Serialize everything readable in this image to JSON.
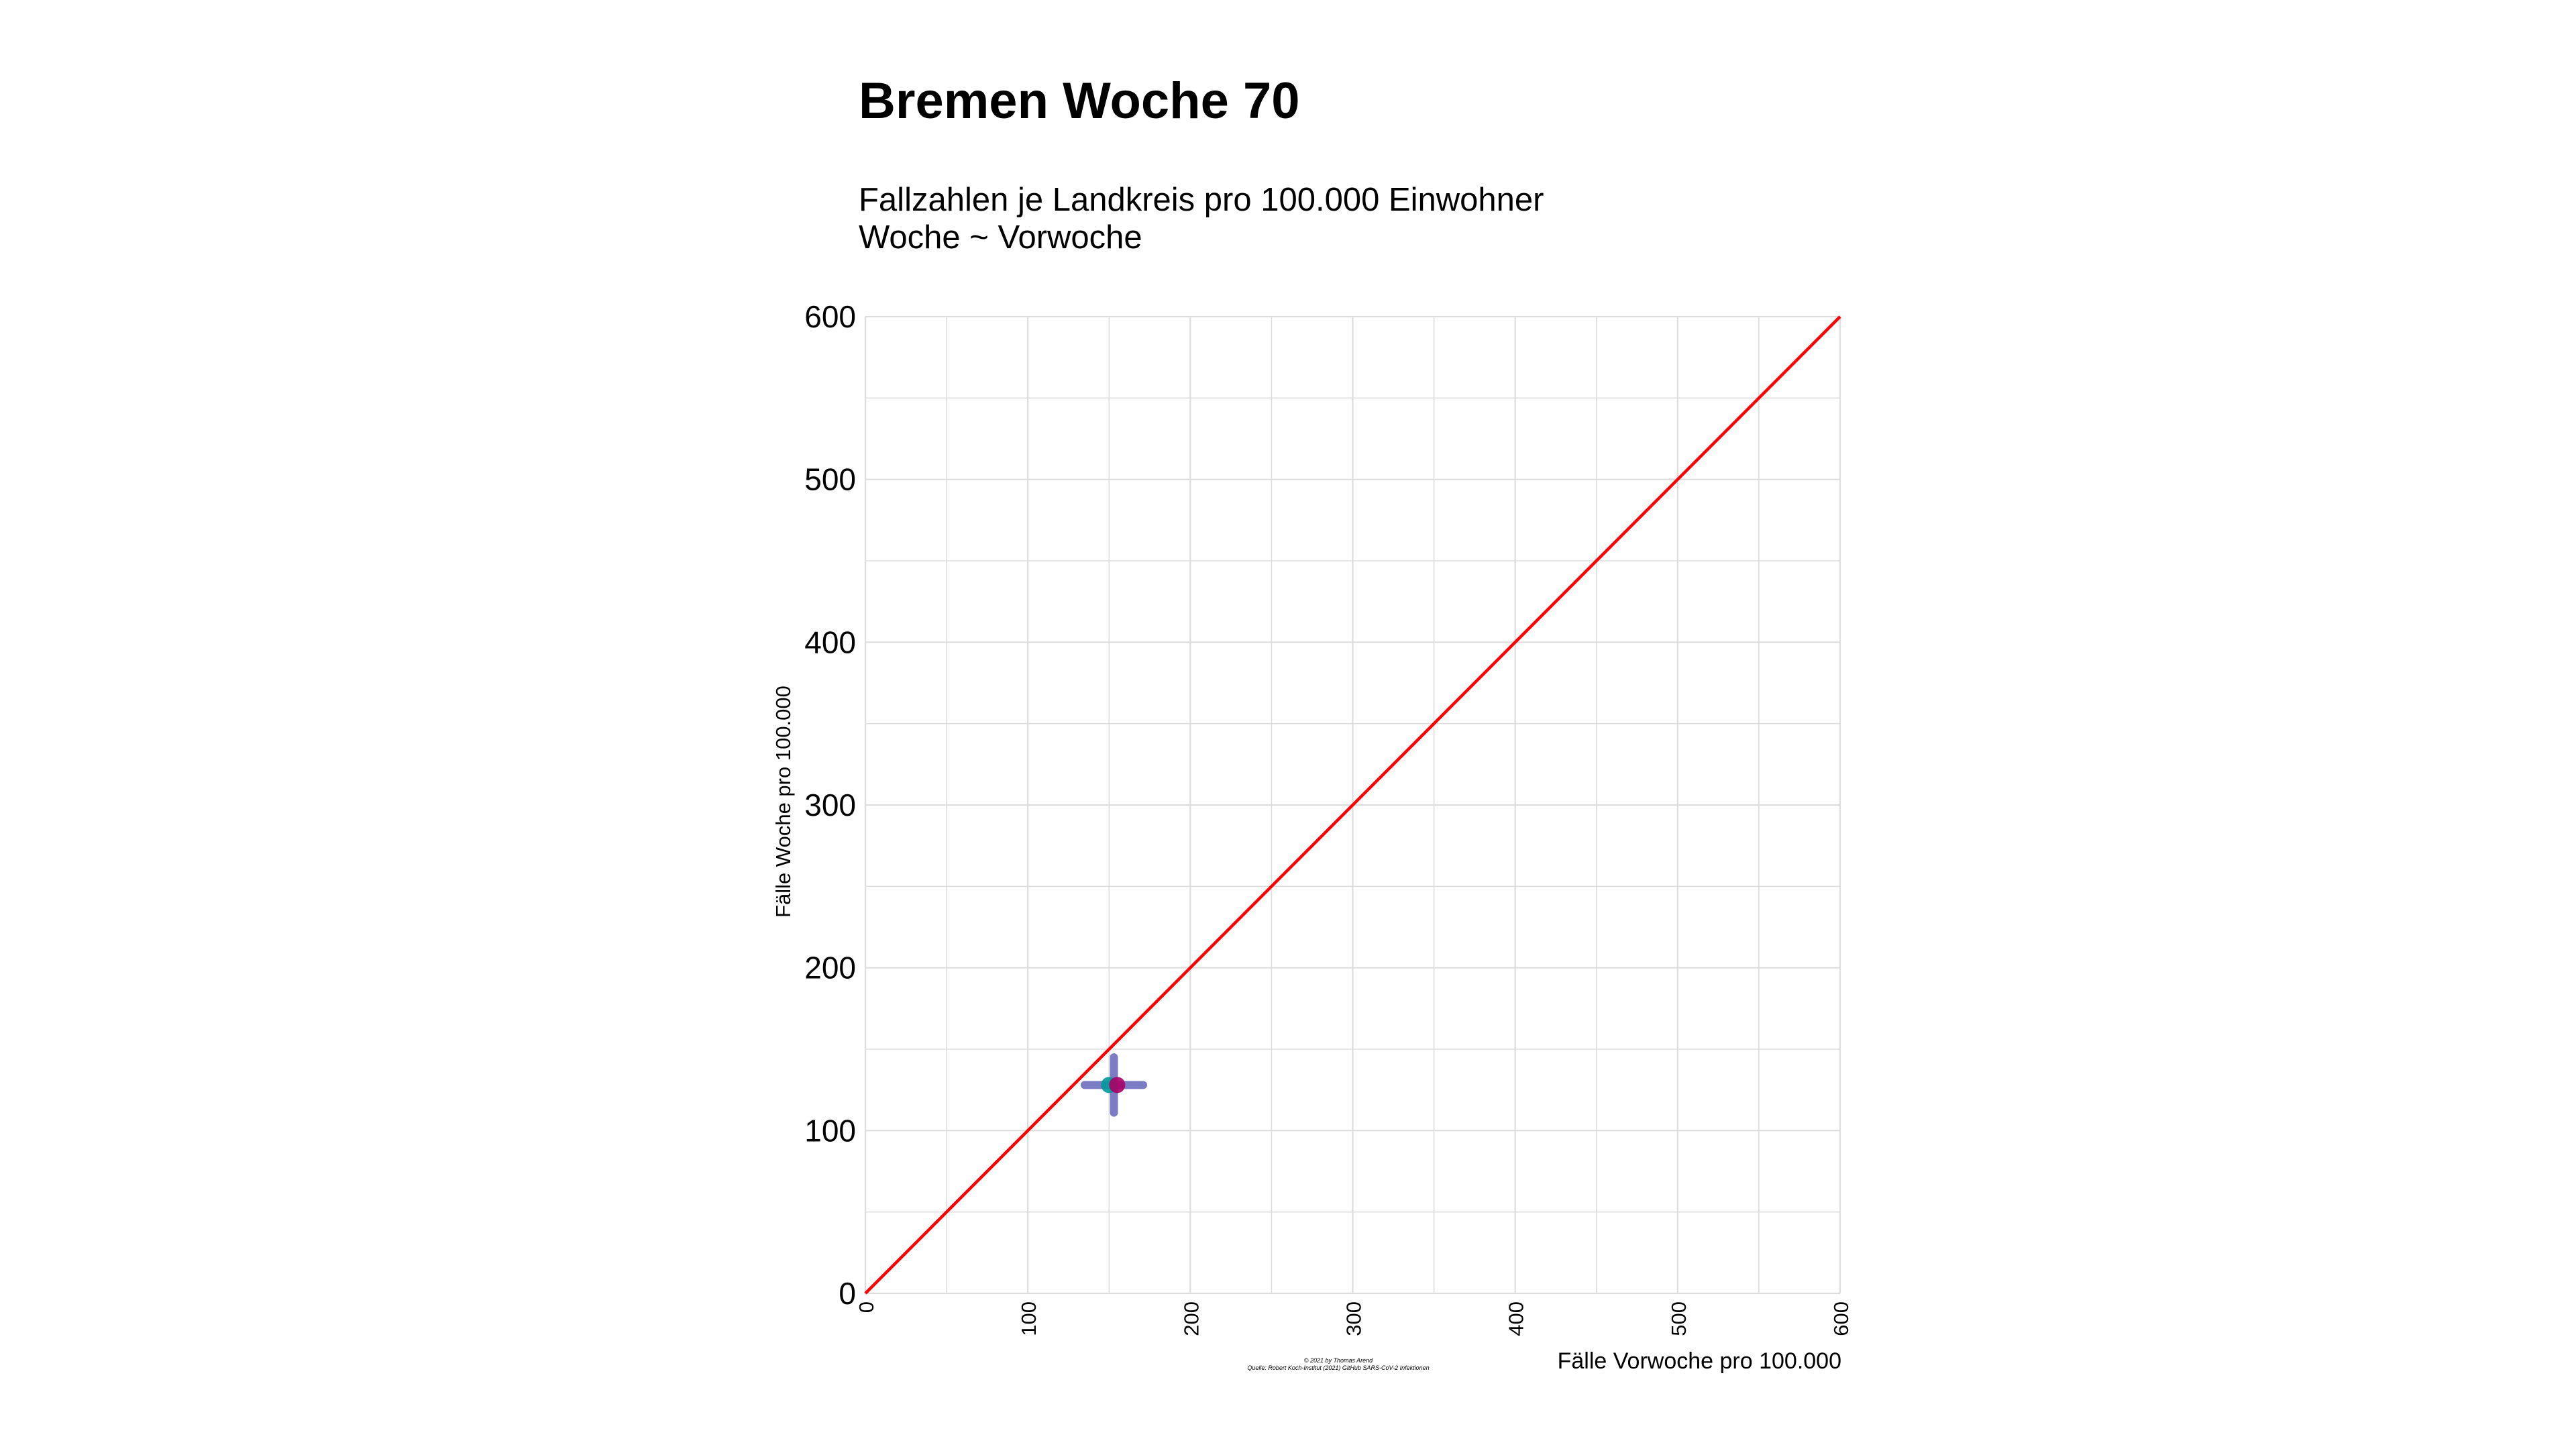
{
  "chart_data": {
    "type": "scatter",
    "title": "Bremen Woche 70",
    "subtitle_lines": [
      "Fallzahlen je Landkreis pro 100.000 Einwohner",
      "Woche ~ Vorwoche"
    ],
    "xlabel": "Fälle Vorwoche pro 100.000",
    "ylabel": "Fälle Woche pro 100.000",
    "xlim": [
      0,
      600
    ],
    "ylim": [
      0,
      600
    ],
    "x_ticks": [
      "0",
      "100",
      "200",
      "300",
      "400",
      "500",
      "600"
    ],
    "y_ticks": [
      "0",
      "100",
      "200",
      "300",
      "400",
      "500",
      "600"
    ],
    "grid": true,
    "reference_line": {
      "from": [
        0,
        0
      ],
      "to": [
        600,
        600
      ],
      "color": "#ff0000"
    },
    "points": [
      {
        "x": 150,
        "y": 128,
        "color": "#009999"
      },
      {
        "x": 155,
        "y": 128,
        "color": "#aa0066"
      }
    ],
    "crosshair": {
      "x": 153,
      "y": 128,
      "x_range": [
        135,
        171
      ],
      "y_range": [
        111,
        145
      ],
      "color": "#6666bb"
    },
    "caption_lines": [
      "© 2021 by Thomas Arend",
      "Quelle: Robert Koch-Institut (2021) GitHub SARS-CoV-2 Infektionen"
    ]
  }
}
